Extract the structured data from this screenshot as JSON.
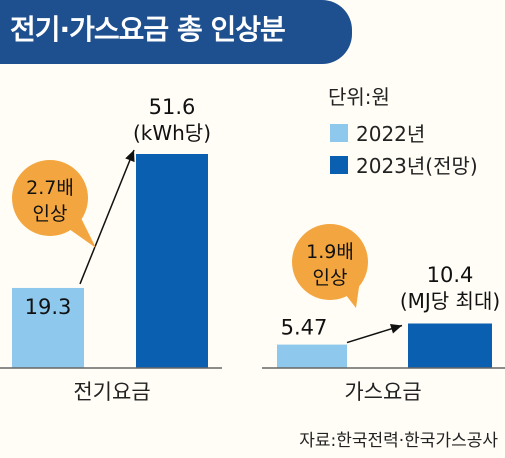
{
  "title": "전기·가스요금 총 인상분",
  "unit_label": "단위:원",
  "legend": [
    {
      "label": "2022년",
      "color": "#8ec8ec"
    },
    {
      "label": "2023년(전망)",
      "color": "#0b5fb0"
    }
  ],
  "source": "자료:한국전력·한국가스공사",
  "colors": {
    "banner": "#1e4f8f",
    "callout": "#f3a63f",
    "axis": "#666666"
  },
  "chart_data": {
    "type": "bar",
    "categories": [
      "전기요금",
      "가스요금"
    ],
    "series": [
      {
        "name": "2022년",
        "values": [
          19.3,
          5.47
        ]
      },
      {
        "name": "2023년(전망)",
        "values": [
          51.6,
          10.4
        ]
      }
    ],
    "value_labels": [
      [
        "19.3",
        "5.47"
      ],
      [
        "51.6",
        "10.4"
      ]
    ],
    "unit_notes": [
      "(kWh당)",
      "(MJ당 최대)"
    ],
    "increase_callouts": [
      {
        "line1": "2.7배",
        "line2": "인상"
      },
      {
        "line1": "1.9배",
        "line2": "인상"
      }
    ],
    "ylim": [
      0,
      60
    ]
  }
}
